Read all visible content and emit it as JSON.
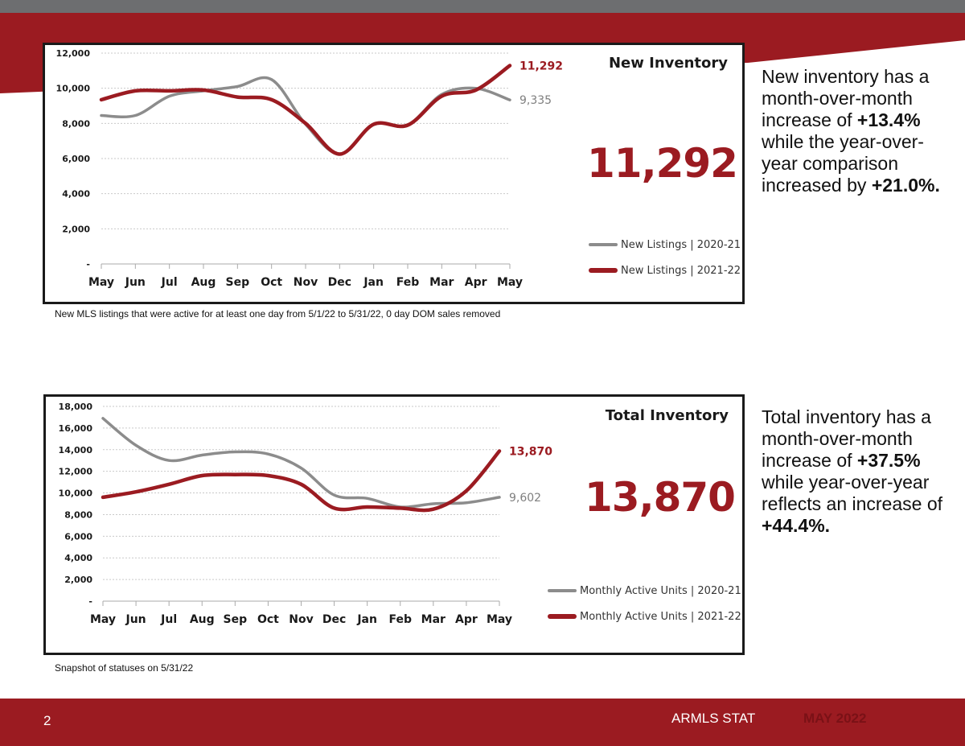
{
  "colors": {
    "brand_red": "#9b1b21",
    "series_prior": "#8c8c8c",
    "series_current": "#9b1b21",
    "topbar_gray": "#6d6e70"
  },
  "chart_data": [
    {
      "type": "line",
      "title": "New Inventory",
      "headline": "11,292",
      "categories": [
        "May",
        "Jun",
        "Jul",
        "Aug",
        "Sep",
        "Oct",
        "Nov",
        "Dec",
        "Jan",
        "Feb",
        "Mar",
        "Apr",
        "May"
      ],
      "ylim": [
        0,
        12000
      ],
      "y_ticks": [
        "-",
        "2,000",
        "4,000",
        "6,000",
        "8,000",
        "10,000",
        "12,000"
      ],
      "series": [
        {
          "name": "New Listings | 2020-21",
          "values": [
            8450,
            8450,
            9550,
            9850,
            10100,
            10500,
            7950,
            6250,
            7950,
            7900,
            9650,
            10000,
            9335
          ]
        },
        {
          "name": "New Listings | 2021-22",
          "values": [
            9350,
            9850,
            9850,
            9900,
            9500,
            9350,
            8000,
            6250,
            7950,
            7900,
            9550,
            9900,
            11292
          ]
        }
      ],
      "end_labels": [
        "9,335",
        "11,292"
      ],
      "grid": true,
      "legend": "bottom-right",
      "caption": "New MLS listings that were active for at least one day from 5/1/22 to 5/31/22, 0 day DOM sales removed",
      "description": {
        "p1": "New inventory has a month-over-month increase of ",
        "b1": "+13.4%",
        "p2": " while the year-over-year comparison increased by ",
        "b2": "+21.0%."
      }
    },
    {
      "type": "line",
      "title": "Total Inventory",
      "headline": "13,870",
      "categories": [
        "May",
        "Jun",
        "Jul",
        "Aug",
        "Sep",
        "Oct",
        "Nov",
        "Dec",
        "Jan",
        "Feb",
        "Mar",
        "Apr",
        "May"
      ],
      "ylim": [
        0,
        18000
      ],
      "y_ticks": [
        "-",
        "2,000",
        "4,000",
        "6,000",
        "8,000",
        "10,000",
        "12,000",
        "14,000",
        "16,000",
        "18,000"
      ],
      "series": [
        {
          "name": "Monthly Active Units | 2020-21",
          "values": [
            16900,
            14400,
            13000,
            13500,
            13800,
            13600,
            12300,
            9800,
            9500,
            8700,
            9000,
            9100,
            9602
          ]
        },
        {
          "name": "Monthly Active Units | 2021-22",
          "values": [
            9600,
            10100,
            10800,
            11600,
            11700,
            11600,
            10800,
            8600,
            8700,
            8600,
            8500,
            10200,
            13870
          ]
        }
      ],
      "end_labels": [
        "9,602",
        "13,870"
      ],
      "grid": true,
      "legend": "bottom-right",
      "caption": "Snapshot of statuses on 5/31/22",
      "description": {
        "p1": "Total inventory has a month-over-month increase of ",
        "b1": "+37.5%",
        "p2": " while year-over-year reflects an increase of ",
        "b2": "+44.4%."
      }
    }
  ],
  "footer": {
    "page": "2",
    "brand": "ARMLS STAT",
    "date": "MAY 2022"
  }
}
